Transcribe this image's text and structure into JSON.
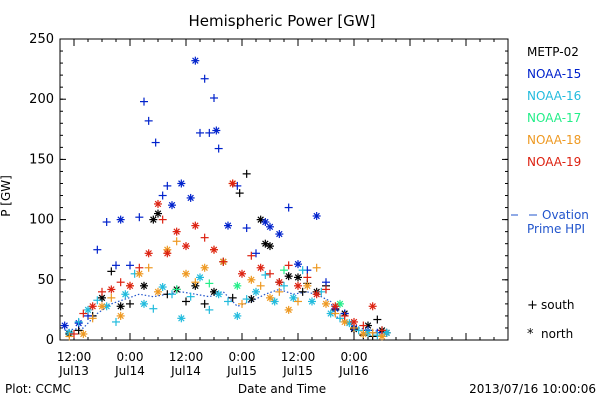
{
  "chart_data": {
    "type": "scatter",
    "title": "Hemispheric Power [GW]",
    "ylabel": "P [GW]",
    "xlabel": "Date and Time",
    "ylim": [
      0,
      250
    ],
    "yticks": [
      0,
      50,
      100,
      150,
      200,
      250
    ],
    "xlim_hours": [
      -3,
      93
    ],
    "xtick_labels": [
      {
        "t": 0,
        "line1": "12:00",
        "line2": "Jul13"
      },
      {
        "t": 12,
        "line1": "0:00",
        "line2": "Jul14"
      },
      {
        "t": 24,
        "line1": "12:00",
        "line2": "Jul14"
      },
      {
        "t": 36,
        "line1": "0:00",
        "line2": "Jul15"
      },
      {
        "t": 48,
        "line1": "12:00",
        "line2": "Jul15"
      },
      {
        "t": 60,
        "line1": "0:00",
        "line2": "Jul16"
      }
    ],
    "series": [
      {
        "name": "METP-02",
        "color": "#000000",
        "points": [
          [
            -1,
            5,
            "n"
          ],
          [
            1,
            8,
            "s"
          ],
          [
            4,
            20,
            "s"
          ],
          [
            6,
            35,
            "n"
          ],
          [
            8,
            57,
            "s"
          ],
          [
            10,
            28,
            "n"
          ],
          [
            12,
            30,
            "s"
          ],
          [
            15,
            45,
            "n"
          ],
          [
            17,
            100,
            "n"
          ],
          [
            18,
            105,
            "n"
          ],
          [
            20,
            38,
            "s"
          ],
          [
            22,
            42,
            "n"
          ],
          [
            24,
            32,
            "s"
          ],
          [
            26,
            45,
            "n"
          ],
          [
            28,
            30,
            "s"
          ],
          [
            30,
            40,
            "n"
          ],
          [
            32,
            65,
            "n"
          ],
          [
            34,
            35,
            "s"
          ],
          [
            35.5,
            122,
            "s"
          ],
          [
            37,
            138,
            "s"
          ],
          [
            38,
            34,
            "n"
          ],
          [
            40,
            100,
            "n"
          ],
          [
            41,
            80,
            "n"
          ],
          [
            42,
            78,
            "n"
          ],
          [
            44,
            48,
            "s"
          ],
          [
            46,
            53,
            "n"
          ],
          [
            48,
            52,
            "n"
          ],
          [
            49,
            40,
            "s"
          ],
          [
            50,
            47,
            "s"
          ],
          [
            52,
            40,
            "n"
          ],
          [
            54,
            45,
            "s"
          ],
          [
            56,
            25,
            "s"
          ],
          [
            58,
            22,
            "n"
          ],
          [
            60,
            9,
            "n"
          ],
          [
            62,
            4,
            "s"
          ],
          [
            63,
            12,
            "n"
          ],
          [
            64,
            3,
            "s"
          ],
          [
            65,
            17,
            "s"
          ],
          [
            66,
            8,
            "n"
          ],
          [
            67,
            6,
            "n"
          ]
        ]
      },
      {
        "name": "NOAA-15",
        "color": "#0022cc",
        "points": [
          [
            -2,
            12,
            "n"
          ],
          [
            1,
            14,
            "n"
          ],
          [
            3,
            20,
            "s"
          ],
          [
            5,
            75,
            "s"
          ],
          [
            7,
            98,
            "s"
          ],
          [
            9,
            62,
            "s"
          ],
          [
            10,
            100,
            "n"
          ],
          [
            12,
            62,
            "s"
          ],
          [
            14,
            102,
            "s"
          ],
          [
            15,
            198,
            "s"
          ],
          [
            16,
            182,
            "s"
          ],
          [
            17.5,
            164,
            "s"
          ],
          [
            19,
            120,
            "s"
          ],
          [
            20,
            128,
            "s"
          ],
          [
            21,
            112,
            "n"
          ],
          [
            23,
            130,
            "n"
          ],
          [
            25,
            118,
            "n"
          ],
          [
            26,
            232,
            "n"
          ],
          [
            27,
            172,
            "s"
          ],
          [
            28,
            217,
            "s"
          ],
          [
            29,
            172,
            "s"
          ],
          [
            30,
            201,
            "s"
          ],
          [
            30.5,
            174,
            "n"
          ],
          [
            31,
            159,
            "s"
          ],
          [
            33,
            95,
            "n"
          ],
          [
            35,
            128,
            "s"
          ],
          [
            37,
            93,
            "s"
          ],
          [
            39,
            72,
            "s"
          ],
          [
            41,
            98,
            "n"
          ],
          [
            42,
            94,
            "n"
          ],
          [
            44,
            88,
            "n"
          ],
          [
            46,
            110,
            "s"
          ],
          [
            48,
            63,
            "n"
          ],
          [
            50,
            58,
            "s"
          ],
          [
            52,
            103,
            "n"
          ],
          [
            54,
            48,
            "s"
          ],
          [
            56,
            26,
            "n"
          ],
          [
            58,
            22,
            "s"
          ],
          [
            60,
            10,
            "n"
          ],
          [
            63,
            8,
            "s"
          ],
          [
            65,
            6,
            "s"
          ]
        ]
      },
      {
        "name": "NOAA-16",
        "color": "#22bbdd",
        "points": [
          [
            -1,
            6,
            "n"
          ],
          [
            1,
            15,
            "s"
          ],
          [
            3,
            25,
            "n"
          ],
          [
            5,
            33,
            "s"
          ],
          [
            7,
            28,
            "n"
          ],
          [
            9,
            15,
            "s"
          ],
          [
            11,
            38,
            "n"
          ],
          [
            13,
            55,
            "s"
          ],
          [
            15,
            30,
            "n"
          ],
          [
            17,
            26,
            "s"
          ],
          [
            19,
            44,
            "n"
          ],
          [
            21,
            38,
            "s"
          ],
          [
            23,
            18,
            "n"
          ],
          [
            25,
            36,
            "s"
          ],
          [
            27,
            52,
            "n"
          ],
          [
            29,
            25,
            "s"
          ],
          [
            31,
            38,
            "n"
          ],
          [
            33,
            32,
            "s"
          ],
          [
            35,
            20,
            "n"
          ],
          [
            37,
            34,
            "s"
          ],
          [
            39,
            40,
            "n"
          ],
          [
            41,
            54,
            "s"
          ],
          [
            43,
            32,
            "n"
          ],
          [
            45,
            45,
            "s"
          ],
          [
            47,
            35,
            "n"
          ],
          [
            49,
            58,
            "s"
          ],
          [
            51,
            32,
            "n"
          ],
          [
            53,
            40,
            "s"
          ],
          [
            55,
            22,
            "n"
          ],
          [
            57,
            18,
            "s"
          ],
          [
            59,
            14,
            "n"
          ],
          [
            61,
            8,
            "s"
          ],
          [
            63,
            6,
            "n"
          ],
          [
            65,
            4,
            "s"
          ],
          [
            67,
            6,
            "n"
          ]
        ]
      },
      {
        "name": "NOAA-17",
        "color": "#22ee88",
        "points": [
          [
            22,
            42,
            "s"
          ],
          [
            29,
            47,
            "s"
          ],
          [
            35,
            45,
            "n"
          ],
          [
            45,
            58,
            "s"
          ],
          [
            57,
            30,
            "n"
          ]
        ]
      },
      {
        "name": "NOAA-18",
        "color": "#ee9922",
        "points": [
          [
            -1,
            3,
            "s"
          ],
          [
            2,
            5,
            "n"
          ],
          [
            4,
            18,
            "s"
          ],
          [
            6,
            28,
            "n"
          ],
          [
            8,
            35,
            "s"
          ],
          [
            10,
            20,
            "n"
          ],
          [
            12,
            45,
            "s"
          ],
          [
            14,
            55,
            "n"
          ],
          [
            16,
            60,
            "s"
          ],
          [
            18,
            40,
            "n"
          ],
          [
            20,
            75,
            "n"
          ],
          [
            22,
            82,
            "s"
          ],
          [
            24,
            55,
            "n"
          ],
          [
            26,
            48,
            "s"
          ],
          [
            28,
            60,
            "n"
          ],
          [
            30,
            75,
            "s"
          ],
          [
            32,
            65,
            "n"
          ],
          [
            34,
            130,
            "n"
          ],
          [
            36,
            30,
            "s"
          ],
          [
            38,
            50,
            "n"
          ],
          [
            40,
            45,
            "s"
          ],
          [
            42,
            35,
            "n"
          ],
          [
            44,
            40,
            "s"
          ],
          [
            46,
            25,
            "n"
          ],
          [
            48,
            32,
            "s"
          ],
          [
            50,
            45,
            "n"
          ],
          [
            52,
            60,
            "s"
          ],
          [
            54,
            30,
            "n"
          ],
          [
            56,
            22,
            "s"
          ],
          [
            58,
            15,
            "n"
          ],
          [
            60,
            10,
            "s"
          ],
          [
            62,
            5,
            "n"
          ],
          [
            64,
            6,
            "s"
          ],
          [
            66,
            3,
            "n"
          ]
        ]
      },
      {
        "name": "NOAA-19",
        "color": "#dd2211",
        "points": [
          [
            0,
            5,
            "s"
          ],
          [
            2,
            22,
            "s"
          ],
          [
            4,
            28,
            "n"
          ],
          [
            6,
            40,
            "s"
          ],
          [
            8,
            42,
            "n"
          ],
          [
            10,
            48,
            "s"
          ],
          [
            12,
            45,
            "n"
          ],
          [
            14,
            60,
            "s"
          ],
          [
            16,
            72,
            "n"
          ],
          [
            18,
            113,
            "n"
          ],
          [
            19,
            100,
            "s"
          ],
          [
            20,
            72,
            "n"
          ],
          [
            22,
            90,
            "n"
          ],
          [
            24,
            78,
            "n"
          ],
          [
            26,
            95,
            "n"
          ],
          [
            28,
            85,
            "s"
          ],
          [
            30,
            75,
            "n"
          ],
          [
            32,
            65,
            "s"
          ],
          [
            34,
            130,
            "n"
          ],
          [
            36,
            55,
            "n"
          ],
          [
            38,
            70,
            "s"
          ],
          [
            40,
            60,
            "n"
          ],
          [
            42,
            55,
            "s"
          ],
          [
            44,
            48,
            "n"
          ],
          [
            46,
            62,
            "s"
          ],
          [
            48,
            45,
            "n"
          ],
          [
            50,
            52,
            "s"
          ],
          [
            52,
            38,
            "n"
          ],
          [
            54,
            42,
            "s"
          ],
          [
            56,
            28,
            "n"
          ],
          [
            58,
            20,
            "s"
          ],
          [
            60,
            15,
            "n"
          ],
          [
            62,
            12,
            "s"
          ],
          [
            64,
            28,
            "n"
          ],
          [
            66,
            8,
            "s"
          ]
        ]
      }
    ],
    "ovation": {
      "name_line1": "Ovation",
      "name_line2": "Prime HPI",
      "color": "#2255cc",
      "points": [
        [
          -2,
          8
        ],
        [
          2,
          10
        ],
        [
          5,
          22
        ],
        [
          8,
          30
        ],
        [
          11,
          34
        ],
        [
          14,
          38
        ],
        [
          17,
          36
        ],
        [
          20,
          38
        ],
        [
          23,
          40
        ],
        [
          26,
          38
        ],
        [
          29,
          36
        ],
        [
          32,
          40
        ],
        [
          35,
          28
        ],
        [
          38,
          32
        ],
        [
          41,
          38
        ],
        [
          44,
          42
        ],
        [
          47,
          38
        ],
        [
          50,
          40
        ],
        [
          53,
          36
        ],
        [
          55,
          32
        ],
        [
          56,
          20
        ],
        [
          58,
          15
        ],
        [
          61,
          10
        ],
        [
          64,
          8
        ],
        [
          67,
          6
        ]
      ]
    },
    "marker_key": [
      {
        "symbol": "+",
        "label": "south"
      },
      {
        "symbol": "*",
        "label": "north"
      }
    ]
  },
  "footer": {
    "left": "Plot: CCMC",
    "right": "2013/07/16 10:00:06"
  }
}
